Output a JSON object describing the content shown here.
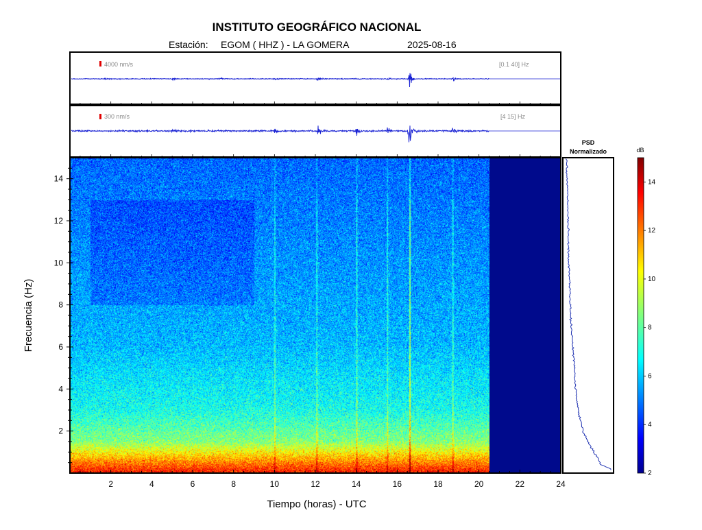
{
  "header": {
    "title": "INSTITUTO GEOGRÁFICO NACIONAL",
    "station_label": "Estación:",
    "station": "EGOM ( HHZ ) - LA GOMERA",
    "date": "2025-08-16"
  },
  "colors": {
    "trace": "#1a23d4",
    "scale_bar": "#e00000",
    "no_data": "#000a8c",
    "psd_line": "#1c2fb0",
    "axis": "#000000"
  },
  "chart_data": [
    {
      "type": "line",
      "name": "trace-broadband",
      "scale_label": "4000 nm/s",
      "filter_label": "[0.1 40] Hz",
      "xlim": [
        0,
        24
      ],
      "data_end_hour": 20.5,
      "events": [
        {
          "t": 1.7,
          "amp": 0.06
        },
        {
          "t": 5.0,
          "amp": 0.05
        },
        {
          "t": 7.3,
          "amp": 0.05
        },
        {
          "t": 10.0,
          "amp": 0.05
        },
        {
          "t": 12.1,
          "amp": 0.07
        },
        {
          "t": 14.0,
          "amp": 0.05
        },
        {
          "t": 15.5,
          "amp": 0.05
        },
        {
          "t": 16.55,
          "amp": 0.55
        },
        {
          "t": 18.7,
          "amp": 0.08
        }
      ]
    },
    {
      "type": "line",
      "name": "trace-filtered",
      "scale_label": "300 nm/s",
      "filter_label": "[4 15] Hz",
      "xlim": [
        0,
        24
      ],
      "data_end_hour": 20.5,
      "events": [
        {
          "t": 5.0,
          "amp": 0.08
        },
        {
          "t": 10.0,
          "amp": 0.12
        },
        {
          "t": 12.1,
          "amp": 0.28
        },
        {
          "t": 14.0,
          "amp": 0.18
        },
        {
          "t": 15.5,
          "amp": 0.18
        },
        {
          "t": 16.55,
          "amp": 1.0
        },
        {
          "t": 17.0,
          "amp": 0.08
        },
        {
          "t": 18.7,
          "amp": 0.16
        }
      ]
    },
    {
      "type": "heatmap",
      "name": "spectrogram",
      "xlabel": "Tiempo (horas) - UTC",
      "ylabel": "Frecuencia  (Hz)",
      "xlim": [
        0,
        24
      ],
      "ylim": [
        0,
        15
      ],
      "xticks": [
        2,
        4,
        6,
        8,
        10,
        12,
        14,
        16,
        18,
        20,
        22,
        24
      ],
      "yticks": [
        2,
        4,
        6,
        8,
        10,
        12,
        14
      ],
      "data_end_hour": 20.5,
      "vertical_bands_hours": [
        10.0,
        12.05,
        14.0,
        15.5,
        16.6,
        18.7
      ],
      "no_data_level_db": 2
    },
    {
      "type": "line",
      "name": "psd",
      "title": "PSD",
      "subtitle": "Normalizado",
      "freq": [
        0.2,
        0.4,
        0.7,
        1.0,
        1.5,
        2.0,
        2.5,
        3.0,
        3.5,
        4.0,
        4.5,
        5.0,
        5.5,
        6.0,
        7.0,
        8.0,
        9.0,
        10.0,
        11.0,
        12.0,
        13.0,
        14.0,
        15.0
      ],
      "value": [
        0.98,
        0.75,
        0.7,
        0.6,
        0.48,
        0.38,
        0.32,
        0.27,
        0.24,
        0.22,
        0.2,
        0.19,
        0.17,
        0.16,
        0.12,
        0.1,
        0.09,
        0.07,
        0.06,
        0.05,
        0.04,
        0.03,
        0.02
      ]
    },
    {
      "type": "heatmap",
      "name": "colorbar",
      "unit_label": "dB",
      "ticks": [
        2,
        4,
        6,
        8,
        10,
        12,
        14
      ],
      "range": [
        2,
        15
      ]
    }
  ]
}
